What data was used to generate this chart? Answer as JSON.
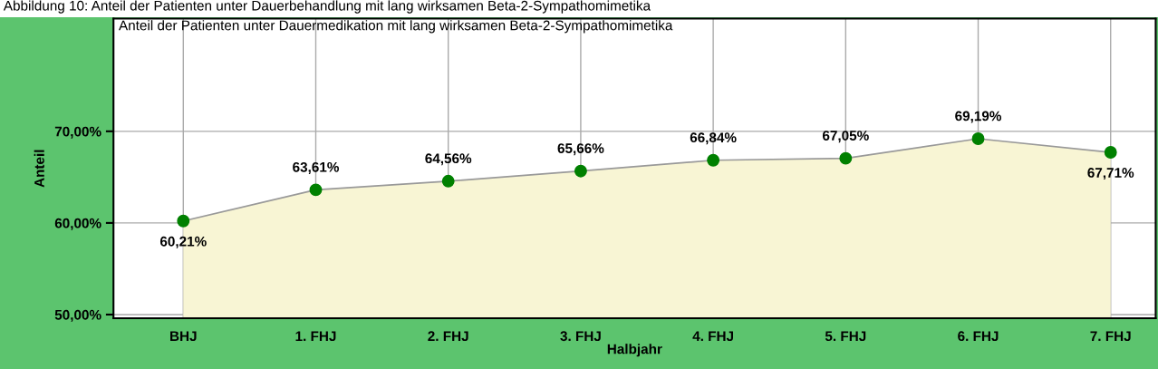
{
  "chart_data": {
    "type": "area",
    "title": "Anteil der Patienten unter Dauermedikation mit lang wirksamen Beta-2-Sympathomimetika",
    "annotations": [
      "Abbildung 10: Anteil der Patienten unter Dauerbehandlung mit lang wirksamen Beta-2-Sympathomimetika"
    ],
    "xlabel": "Halbjahr",
    "ylabel": "Anteil",
    "categories": [
      "BHJ",
      "1. FHJ",
      "2. FHJ",
      "3. FHJ",
      "4. FHJ",
      "5. FHJ",
      "6. FHJ",
      "7. FHJ"
    ],
    "series": [
      {
        "color": "#f8f5d4",
        "values": [
          60.21,
          63.61,
          64.56,
          65.66,
          66.84,
          67.05,
          69.19,
          67.71
        ],
        "value_labels": [
          "60,21%",
          "63,61%",
          "64,56%",
          "65,66%",
          "66,84%",
          "67,05%",
          "69,19%",
          "67,71%"
        ]
      }
    ],
    "ylim": [
      49.6,
      82.3
    ],
    "yticks": [
      {
        "value": 50,
        "label": "50,00%"
      },
      {
        "value": 60,
        "label": "60,00%"
      },
      {
        "value": 70,
        "label": "70,00%"
      }
    ],
    "grid": true,
    "marker": "circle",
    "line_style": "solid",
    "legend": false
  }
}
